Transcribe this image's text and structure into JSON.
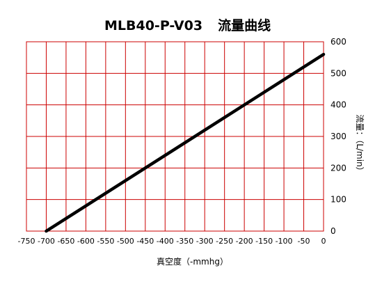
{
  "chart_data": {
    "type": "line",
    "title": "MLB40-P-V03",
    "subtitle": "流量曲线",
    "xlabel": "真空度（-mmhg）",
    "ylabel": "流量：（L/min）",
    "x_ticks": [
      "-750",
      "-700",
      "-650",
      "-600",
      "-550",
      "-500",
      "-450",
      "-400",
      "-350",
      "-300",
      "-250",
      "-200",
      "-150",
      "-100",
      "-50",
      "0"
    ],
    "y_ticks": [
      "0",
      "100",
      "200",
      "300",
      "400",
      "500",
      "600"
    ],
    "xlim": [
      -750,
      0
    ],
    "ylim": [
      0,
      600
    ],
    "grid": true,
    "series": [
      {
        "x": [
          -700,
          0
        ],
        "y": [
          0,
          560
        ]
      }
    ],
    "colors": {
      "grid": "#cc0000",
      "line": "#000000"
    }
  }
}
